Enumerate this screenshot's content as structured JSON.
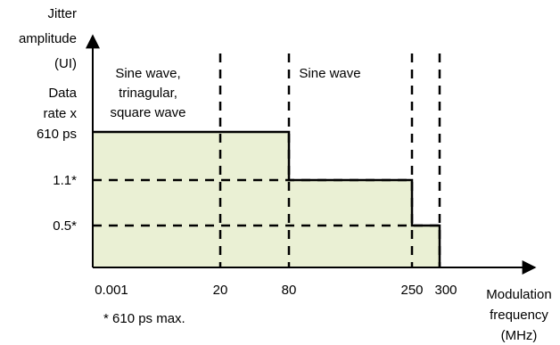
{
  "chart_data": {
    "type": "area",
    "title": "",
    "ylabel_lines": [
      "Jitter",
      "amplitude",
      "(UI)"
    ],
    "xlabel_lines": [
      "Modulation",
      "frequency",
      "(MHz)"
    ],
    "x_tick_labels": [
      "0.001",
      "20",
      "80",
      "250",
      "300"
    ],
    "y_tick_labels": [
      {
        "lines": [
          "Data",
          "rate x",
          "610 ps"
        ]
      },
      {
        "lines": [
          "1.1*"
        ]
      },
      {
        "lines": [
          "0.5*"
        ]
      }
    ],
    "segments": [
      {
        "x_start": "0.001",
        "x_end": "80",
        "level": "Data rate x 610 ps"
      },
      {
        "x_start": "80",
        "x_end": "250",
        "level": "1.1*"
      },
      {
        "x_start": "250",
        "x_end": "300",
        "level": "0.5*"
      }
    ],
    "dashed_verticals_at": [
      "20",
      "80",
      "250",
      "300"
    ],
    "dashed_horizontals_at": [
      "1.1*",
      "0.5*"
    ],
    "region_labels": [
      {
        "lines": [
          "Sine wave,",
          "trinagular,",
          "square wave"
        ]
      },
      {
        "lines": [
          "Sine wave"
        ]
      }
    ],
    "footnote": "* 610 ps max.",
    "fill_color": "#eaf0d4",
    "line_color": "#000000"
  }
}
